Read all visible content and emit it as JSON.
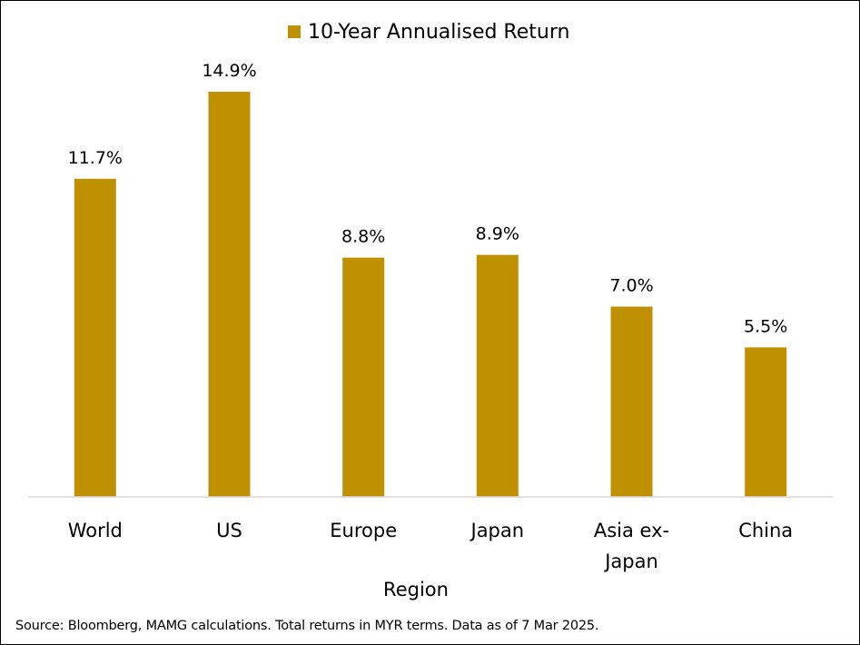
{
  "chart_data": {
    "type": "bar",
    "categories": [
      "World",
      "US",
      "Europe",
      "Japan",
      "Asia ex-Japan",
      "China"
    ],
    "category_lines": [
      [
        "World"
      ],
      [
        "US"
      ],
      [
        "Europe"
      ],
      [
        "Japan"
      ],
      [
        "Asia ex-",
        "Japan"
      ],
      [
        "China"
      ]
    ],
    "series": [
      {
        "name": "10-Year Annualised Return",
        "values": [
          11.7,
          14.9,
          8.8,
          8.9,
          7.0,
          5.5
        ],
        "data_labels": [
          "11.7%",
          "14.9%",
          "8.8%",
          "8.9%",
          "7.0%",
          "5.5%"
        ],
        "color": "#BF9000"
      }
    ],
    "title": "",
    "xlabel": "Region",
    "ylabel": "",
    "ylim": [
      0,
      16
    ],
    "grid": false,
    "legend_position": "top-center",
    "axis_line_color": "#D9D9D9"
  },
  "footer": {
    "source": "Source: Bloomberg, MAMG calculations. Total returns in MYR terms. Data as of 7 Mar 2025."
  }
}
